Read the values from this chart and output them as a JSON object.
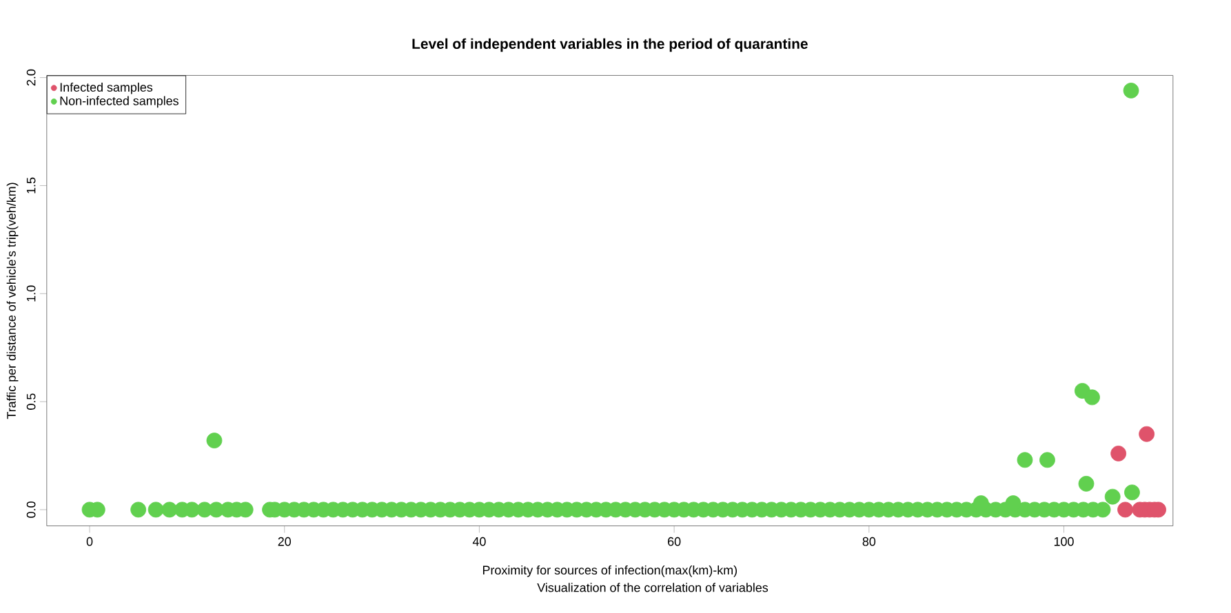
{
  "chart_data": {
    "type": "scatter",
    "title": "Level of independent variables in the period of quarantine",
    "subtitle": "Visualization of the correlation of variables",
    "xlabel": "Proximity for sources of infection(max(km)-km)",
    "ylabel": "Traffic per distance of vehicle's trip(veh/km)",
    "xlim": [
      -4.4,
      111.2
    ],
    "ylim": [
      -0.075,
      2.01
    ],
    "xticks": [
      0,
      20,
      40,
      60,
      80,
      100
    ],
    "yticks": [
      {
        "value": 0,
        "label": "0.0"
      },
      {
        "value": 0.5,
        "label": "0.5"
      },
      {
        "value": 1,
        "label": "1.0"
      },
      {
        "value": 1.5,
        "label": "1.5"
      },
      {
        "value": 2,
        "label": "2.0"
      }
    ],
    "grid": false,
    "legend": "top left",
    "marker": "circle",
    "series": [
      {
        "name": "Infected samples",
        "color": "#df536b",
        "x": [
          105.6,
          108.5,
          106.3,
          107.8,
          108.3,
          108.8,
          109.3,
          109.7
        ],
        "values": [
          0.26,
          0.35,
          0,
          0,
          0,
          0,
          0,
          0
        ]
      },
      {
        "name": "Non-infected samples",
        "color": "#61d04f",
        "x": [
          0,
          0.8,
          5,
          6.8,
          8.2,
          9.5,
          10.5,
          11.8,
          12.8,
          13,
          14.2,
          15.1,
          16,
          18.5,
          19,
          20,
          21,
          22,
          23,
          24,
          25,
          26,
          27,
          28,
          29,
          30,
          31,
          32,
          33,
          34,
          35,
          36,
          37,
          38,
          39,
          40,
          41,
          42,
          43,
          44,
          45,
          46,
          47,
          48,
          49,
          50,
          51,
          52,
          53,
          54,
          55,
          56,
          57,
          58,
          59,
          60,
          61,
          62,
          63,
          64,
          65,
          66,
          67,
          68,
          69,
          70,
          71,
          72,
          73,
          74,
          75,
          76,
          77,
          78,
          79,
          80,
          81,
          82,
          83,
          84,
          85,
          86,
          87,
          88,
          89,
          90,
          91,
          92,
          93,
          94,
          95,
          96,
          97,
          98,
          99,
          100,
          101,
          102,
          103,
          104,
          91.5,
          94.8,
          96,
          98.3,
          101.9,
          102.9,
          102.3,
          105,
          106.9,
          107
        ],
        "values": [
          0,
          0,
          0,
          0,
          0,
          0,
          0,
          0,
          0.32,
          0,
          0,
          0,
          0,
          0,
          0,
          0,
          0,
          0,
          0,
          0,
          0,
          0,
          0,
          0,
          0,
          0,
          0,
          0,
          0,
          0,
          0,
          0,
          0,
          0,
          0,
          0,
          0,
          0,
          0,
          0,
          0,
          0,
          0,
          0,
          0,
          0,
          0,
          0,
          0,
          0,
          0,
          0,
          0,
          0,
          0,
          0,
          0,
          0,
          0,
          0,
          0,
          0,
          0,
          0,
          0,
          0,
          0,
          0,
          0,
          0,
          0,
          0,
          0,
          0,
          0,
          0,
          0,
          0,
          0,
          0,
          0,
          0,
          0,
          0,
          0,
          0,
          0,
          0,
          0,
          0,
          0,
          0,
          0,
          0,
          0,
          0,
          0,
          0,
          0,
          0,
          0.03,
          0.03,
          0.23,
          0.23,
          0.55,
          0.52,
          0.12,
          0.06,
          1.94,
          0.08
        ]
      }
    ]
  }
}
